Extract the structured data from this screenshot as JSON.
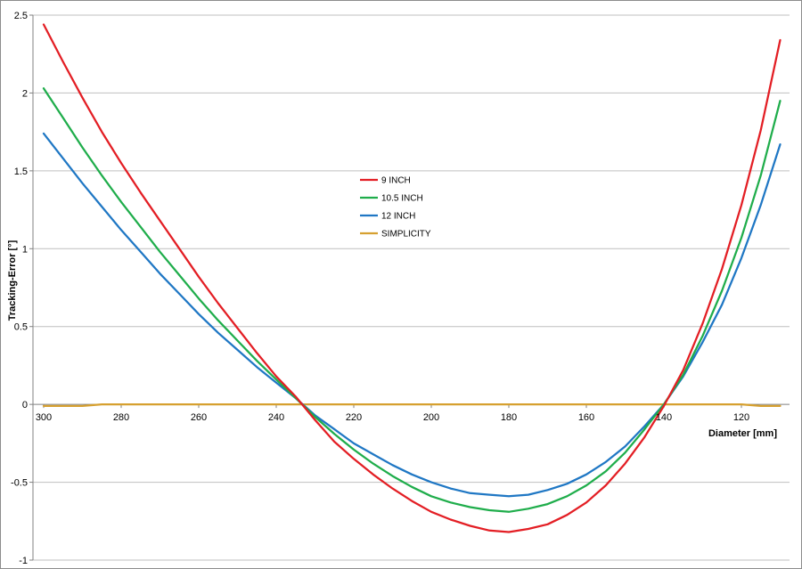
{
  "chart_data": {
    "type": "line",
    "title": "",
    "xlabel": "Diameter [mm]",
    "ylabel": "Tracking-Error [°]",
    "xlim": [
      300,
      110
    ],
    "ylim": [
      -1,
      2.5
    ],
    "x_reversed": true,
    "x_ticks": [
      300,
      280,
      260,
      240,
      220,
      200,
      180,
      160,
      140,
      120
    ],
    "y_ticks": [
      -1,
      -0.5,
      0,
      0.5,
      1,
      1.5,
      2,
      2.5
    ],
    "x_tick_labels": [
      "300",
      "280",
      "260",
      "240",
      "220",
      "200",
      "180",
      "160",
      "140",
      "120"
    ],
    "y_tick_labels": [
      "-1",
      "-0.5",
      "0",
      "0.5",
      "1",
      "1.5",
      "2",
      "2.5"
    ],
    "grid": "horizontal",
    "legend_position": "center-left",
    "x": [
      300,
      295,
      290,
      285,
      280,
      275,
      270,
      265,
      260,
      255,
      250,
      245,
      240,
      235,
      230,
      225,
      220,
      215,
      210,
      205,
      200,
      195,
      190,
      185,
      180,
      175,
      170,
      165,
      160,
      155,
      150,
      145,
      140,
      135,
      130,
      125,
      120,
      115,
      110
    ],
    "series": [
      {
        "name": "9 INCH",
        "color": "#e31e24",
        "values": [
          2.44,
          2.2,
          1.97,
          1.75,
          1.55,
          1.36,
          1.18,
          1.0,
          0.82,
          0.65,
          0.49,
          0.33,
          0.18,
          0.05,
          -0.1,
          -0.24,
          -0.35,
          -0.45,
          -0.54,
          -0.62,
          -0.69,
          -0.74,
          -0.78,
          -0.81,
          -0.82,
          -0.8,
          -0.77,
          -0.71,
          -0.63,
          -0.52,
          -0.38,
          -0.21,
          -0.01,
          0.22,
          0.52,
          0.87,
          1.28,
          1.76,
          2.34
        ]
      },
      {
        "name": "10.5 INCH",
        "color": "#1fad4b",
        "values": [
          2.03,
          1.84,
          1.65,
          1.47,
          1.3,
          1.14,
          0.98,
          0.83,
          0.68,
          0.54,
          0.41,
          0.28,
          0.16,
          0.04,
          -0.08,
          -0.19,
          -0.29,
          -0.38,
          -0.46,
          -0.53,
          -0.59,
          -0.63,
          -0.66,
          -0.68,
          -0.69,
          -0.67,
          -0.64,
          -0.59,
          -0.52,
          -0.43,
          -0.31,
          -0.16,
          0.0,
          0.19,
          0.44,
          0.73,
          1.07,
          1.47,
          1.95
        ]
      },
      {
        "name": "12 INCH",
        "color": "#1f77c4",
        "values": [
          1.74,
          1.58,
          1.42,
          1.27,
          1.12,
          0.98,
          0.84,
          0.71,
          0.58,
          0.46,
          0.35,
          0.24,
          0.14,
          0.04,
          -0.07,
          -0.16,
          -0.25,
          -0.32,
          -0.39,
          -0.45,
          -0.5,
          -0.54,
          -0.57,
          -0.58,
          -0.59,
          -0.58,
          -0.55,
          -0.51,
          -0.45,
          -0.37,
          -0.27,
          -0.14,
          0.0,
          0.18,
          0.4,
          0.64,
          0.94,
          1.28,
          1.67
        ]
      },
      {
        "name": "SIMPLICITY",
        "color": "#d6a030",
        "values": [
          -0.01,
          -0.01,
          -0.01,
          0.0,
          0.0,
          0.0,
          0.0,
          0.0,
          0.0,
          0.0,
          0.0,
          0.0,
          0.0,
          0.0,
          0.0,
          0.0,
          0.0,
          0.0,
          0.0,
          0.0,
          0.0,
          0.0,
          0.0,
          0.0,
          0.0,
          0.0,
          0.0,
          0.0,
          0.0,
          0.0,
          0.0,
          0.0,
          0.0,
          0.0,
          0.0,
          0.0,
          0.0,
          -0.01,
          -0.01
        ]
      }
    ]
  }
}
